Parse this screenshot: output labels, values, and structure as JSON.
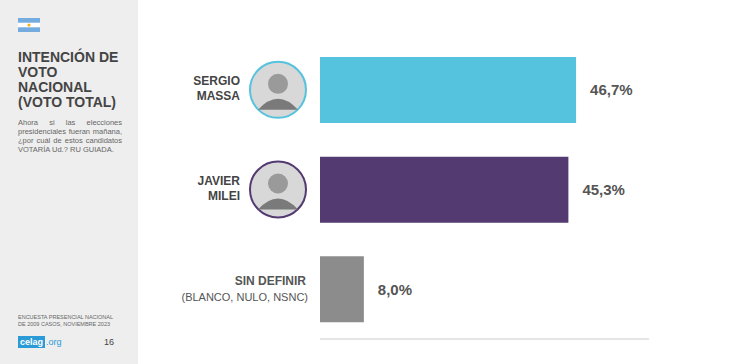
{
  "chart_data": {
    "type": "bar",
    "orientation": "horizontal",
    "title": "INTENCIÓN DE VOTO NACIONAL (VOTO TOTAL)",
    "subtitle": "Ahora si las elecciones presidenciales fueran mañana, ¿por cuál de estos candidatos VOTARÍA Ud.? RU GUIADA.",
    "categories": [
      "SERGIO MASSA",
      "JAVIER MILEI",
      "SIN DEFINIR (BLANCO, NULO, NSNC)"
    ],
    "values": [
      46.7,
      45.3,
      8.0
    ],
    "value_labels": [
      "46,7%",
      "45,3%",
      "8,0%"
    ],
    "colors": [
      "#56c3de",
      "#533a71",
      "#8c8c8c"
    ],
    "xlim": [
      0,
      60
    ],
    "grid": false,
    "data_labels": true,
    "tick_labels": "y"
  },
  "footer": {
    "source": "ENCUESTA PRESENCIAL NACIONAL DE 2009 CASOS, NOVIEMBRE 2023",
    "logo": "celag.org",
    "page": "16"
  }
}
